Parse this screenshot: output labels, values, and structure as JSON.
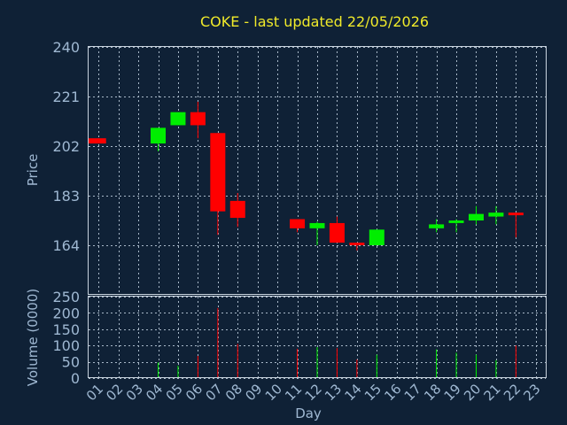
{
  "chart_data": {
    "type": "candlestick",
    "title": "COKE - last updated 22/05/2026",
    "xlabel": "Day",
    "price_panel": {
      "ylabel": "Price",
      "ylim": [
        145,
        240
      ],
      "yticks": [
        164,
        183,
        202,
        221,
        240
      ],
      "grid": true
    },
    "volume_panel": {
      "ylabel": "Volume (0000)",
      "ylim": [
        0,
        250
      ],
      "yticks": [
        0,
        50,
        100,
        150,
        200,
        250
      ],
      "grid": true
    },
    "x_range": [
      1,
      23
    ],
    "x_ticks": [
      "01",
      "02",
      "03",
      "04",
      "05",
      "06",
      "07",
      "08",
      "09",
      "10",
      "11",
      "12",
      "13",
      "14",
      "15",
      "16",
      "17",
      "18",
      "19",
      "20",
      "21",
      "22",
      "23"
    ],
    "colors": {
      "up": "#00ee00",
      "down": "#ff0000"
    },
    "candles": [
      {
        "day": 1,
        "open": 205,
        "close": 203,
        "high": 205,
        "low": 203,
        "volume": 0
      },
      {
        "day": 4,
        "open": 203,
        "close": 209,
        "high": 209,
        "low": 200,
        "volume": 48
      },
      {
        "day": 5,
        "open": 210,
        "close": 215,
        "high": 215,
        "low": 210,
        "volume": 38
      },
      {
        "day": 6,
        "open": 215,
        "close": 210,
        "high": 219,
        "low": 205,
        "volume": 68
      },
      {
        "day": 7,
        "open": 207,
        "close": 177,
        "high": 207,
        "low": 168,
        "volume": 215
      },
      {
        "day": 8,
        "open": 181,
        "close": 174.5,
        "high": 184,
        "low": 171,
        "volume": 105
      },
      {
        "day": 11,
        "open": 174,
        "close": 170.5,
        "high": 174,
        "low": 169,
        "volume": 90
      },
      {
        "day": 12,
        "open": 170.5,
        "close": 172.5,
        "high": 173,
        "low": 164,
        "volume": 95
      },
      {
        "day": 13,
        "open": 172.5,
        "close": 165,
        "high": 175,
        "low": 165,
        "volume": 92
      },
      {
        "day": 14,
        "open": 165,
        "close": 164,
        "high": 165,
        "low": 162,
        "volume": 57
      },
      {
        "day": 15,
        "open": 164,
        "close": 170,
        "high": 170,
        "low": 164,
        "volume": 72
      },
      {
        "day": 18,
        "open": 170.5,
        "close": 172,
        "high": 174,
        "low": 169,
        "volume": 88
      },
      {
        "day": 19,
        "open": 172.5,
        "close": 173.5,
        "high": 174,
        "low": 169,
        "volume": 78
      },
      {
        "day": 20,
        "open": 173.5,
        "close": 176,
        "high": 179,
        "low": 172,
        "volume": 72
      },
      {
        "day": 21,
        "open": 175,
        "close": 176.5,
        "high": 179,
        "low": 172,
        "volume": 55
      },
      {
        "day": 22,
        "open": 176.5,
        "close": 175.5,
        "high": 176.5,
        "low": 167,
        "volume": 100
      }
    ]
  }
}
